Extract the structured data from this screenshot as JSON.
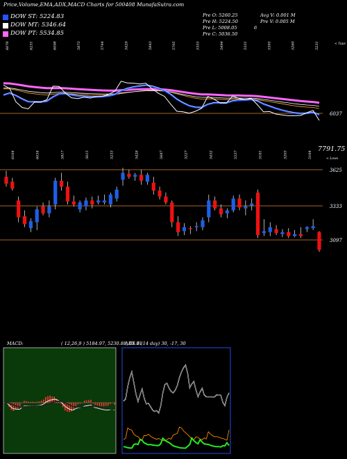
{
  "header": {
    "title": "Price,Volume,EMA,ADX,MACD Charts for 500408 MunafaSutra.com"
  },
  "legend": [
    {
      "label": "DOW ST: 5224.83",
      "color": "#2255ff"
    },
    {
      "label": "DOW MT: 5346.64",
      "color": "#ffffff"
    },
    {
      "label": "DOW PT: 5534.85",
      "color": "#ff66ff"
    }
  ],
  "ohlc_info": {
    "open": "Pre O: 5260.25",
    "high": "Pre H: 5224.50",
    "low": "Pre L: 5008.05",
    "close": "Pre C: 5036.50",
    "extra": "6",
    "avg_volume": "Avg V: 0.001 M",
    "prev_volume": "Pre V: 0.005 M"
  },
  "top_panel": {
    "tops_label": "< Tops",
    "lows_label": "< Lows",
    "top_labels": [
      "6076",
      "6231",
      "6098",
      "5873",
      "5744",
      "5429",
      "5843",
      "5705",
      "5355",
      "5494",
      "5331",
      "5395",
      "5260",
      "5231"
    ],
    "low_labels": [
      "6164",
      "6034",
      "5817",
      "5615",
      "5233",
      "5428",
      "5687",
      "5227",
      "5432",
      "5537",
      "5181",
      "5203",
      "5164"
    ],
    "level_label": "6037",
    "value_label": "7791.75"
  },
  "candle_panel": {
    "levels": [
      "3625",
      "3333",
      "3097"
    ]
  },
  "macd_panel": {
    "label": "MACD:",
    "values": "( 12,26,9 ) 5184.97, 5230.88, 65.91"
  },
  "adx_panel": {
    "label": "ADX",
    "values": "6     (14  day) 30, -17, 30"
  },
  "colors": {
    "up": "#1e5ee8",
    "down": "#ee1111",
    "ema_short": "#2255ff",
    "ema_pt": "#ff66ff",
    "macd_bg": "#0a3a0a",
    "level_line": "#aa6622"
  },
  "chart_data": {
    "type": "candlestick",
    "title": "Price,Volume,EMA,ADX,MACD Charts for 500408 MunafaSutra.com",
    "candles": [
      {
        "o": 5660,
        "h": 5720,
        "l": 5560,
        "c": 5590
      },
      {
        "o": 5610,
        "h": 5650,
        "l": 5520,
        "c": 5540
      },
      {
        "o": 5420,
        "h": 5460,
        "l": 5200,
        "c": 5250
      },
      {
        "o": 5260,
        "h": 5320,
        "l": 5150,
        "c": 5180
      },
      {
        "o": 5140,
        "h": 5240,
        "l": 5100,
        "c": 5210
      },
      {
        "o": 5200,
        "h": 5360,
        "l": 5120,
        "c": 5330
      },
      {
        "o": 5360,
        "h": 5400,
        "l": 5270,
        "c": 5290
      },
      {
        "o": 5290,
        "h": 5420,
        "l": 5250,
        "c": 5360
      },
      {
        "o": 5380,
        "h": 5650,
        "l": 5330,
        "c": 5620
      },
      {
        "o": 5620,
        "h": 5700,
        "l": 5520,
        "c": 5560
      },
      {
        "o": 5560,
        "h": 5610,
        "l": 5380,
        "c": 5410
      },
      {
        "o": 5410,
        "h": 5470,
        "l": 5360,
        "c": 5380
      },
      {
        "o": 5330,
        "h": 5420,
        "l": 5300,
        "c": 5400
      },
      {
        "o": 5360,
        "h": 5450,
        "l": 5320,
        "c": 5420
      },
      {
        "o": 5420,
        "h": 5460,
        "l": 5340,
        "c": 5380
      },
      {
        "o": 5400,
        "h": 5470,
        "l": 5380,
        "c": 5420
      },
      {
        "o": 5400,
        "h": 5480,
        "l": 5380,
        "c": 5420
      },
      {
        "o": 5380,
        "h": 5500,
        "l": 5350,
        "c": 5480
      },
      {
        "o": 5440,
        "h": 5560,
        "l": 5410,
        "c": 5530
      },
      {
        "o": 5630,
        "h": 5750,
        "l": 5570,
        "c": 5700
      },
      {
        "o": 5690,
        "h": 5730,
        "l": 5640,
        "c": 5660
      },
      {
        "o": 5660,
        "h": 5700,
        "l": 5620,
        "c": 5680
      },
      {
        "o": 5680,
        "h": 5730,
        "l": 5580,
        "c": 5620
      },
      {
        "o": 5610,
        "h": 5700,
        "l": 5580,
        "c": 5680
      },
      {
        "o": 5600,
        "h": 5660,
        "l": 5480,
        "c": 5520
      },
      {
        "o": 5520,
        "h": 5560,
        "l": 5430,
        "c": 5460
      },
      {
        "o": 5460,
        "h": 5500,
        "l": 5380,
        "c": 5400
      },
      {
        "o": 5400,
        "h": 5420,
        "l": 5150,
        "c": 5200
      },
      {
        "o": 5200,
        "h": 5260,
        "l": 5060,
        "c": 5100
      },
      {
        "o": 5110,
        "h": 5190,
        "l": 5070,
        "c": 5150
      },
      {
        "o": 5140,
        "h": 5160,
        "l": 5080,
        "c": 5130
      },
      {
        "o": 5150,
        "h": 5200,
        "l": 5110,
        "c": 5160
      },
      {
        "o": 5150,
        "h": 5250,
        "l": 5120,
        "c": 5220
      },
      {
        "o": 5250,
        "h": 5480,
        "l": 5200,
        "c": 5420
      },
      {
        "o": 5420,
        "h": 5460,
        "l": 5320,
        "c": 5340
      },
      {
        "o": 5340,
        "h": 5380,
        "l": 5250,
        "c": 5280
      },
      {
        "o": 5290,
        "h": 5340,
        "l": 5240,
        "c": 5320
      },
      {
        "o": 5320,
        "h": 5470,
        "l": 5300,
        "c": 5440
      },
      {
        "o": 5440,
        "h": 5480,
        "l": 5320,
        "c": 5350
      },
      {
        "o": 5340,
        "h": 5420,
        "l": 5270,
        "c": 5360
      },
      {
        "o": 5370,
        "h": 5440,
        "l": 5320,
        "c": 5390
      },
      {
        "o": 5500,
        "h": 5530,
        "l": 5040,
        "c": 5070
      },
      {
        "o": 5090,
        "h": 5230,
        "l": 5060,
        "c": 5110
      },
      {
        "o": 5100,
        "h": 5200,
        "l": 5060,
        "c": 5150
      },
      {
        "o": 5130,
        "h": 5170,
        "l": 5070,
        "c": 5090
      },
      {
        "o": 5080,
        "h": 5130,
        "l": 5050,
        "c": 5100
      },
      {
        "o": 5100,
        "h": 5140,
        "l": 5040,
        "c": 5060
      },
      {
        "o": 5060,
        "h": 5120,
        "l": 5050,
        "c": 5080
      },
      {
        "o": 5080,
        "h": 5150,
        "l": 5040,
        "c": 5060
      },
      {
        "o": 5130,
        "h": 5160,
        "l": 5100,
        "c": 5150
      },
      {
        "o": 5140,
        "h": 5230,
        "l": 5120,
        "c": 5160
      },
      {
        "o": 5100,
        "h": 5110,
        "l": 4900,
        "c": 4920
      }
    ]
  }
}
